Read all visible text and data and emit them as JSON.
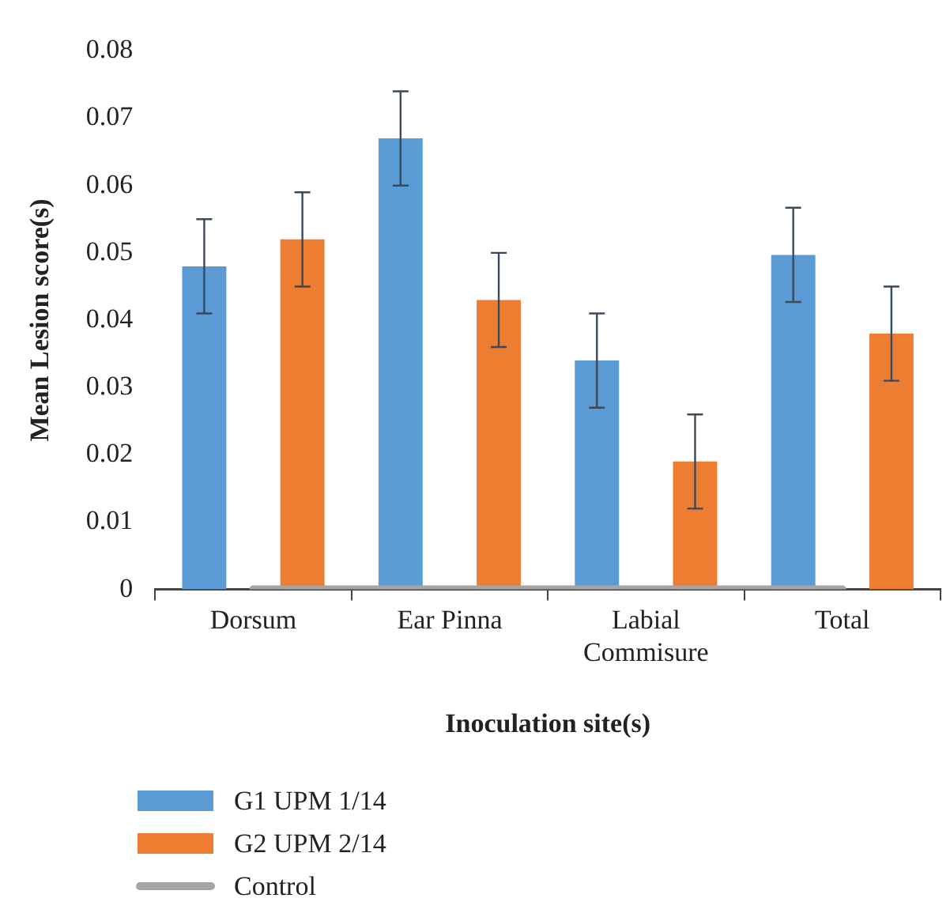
{
  "chart_data": {
    "type": "bar",
    "xlabel": "Inoculation site(s)",
    "ylabel": "Mean Lesion score(s)",
    "categories": [
      "Dorsum",
      "Ear Pinna",
      "Labial\nCommisure",
      "Total"
    ],
    "series": [
      {
        "name": "G1 UPM 1/14",
        "color": "#5b9bd5",
        "values": [
          0.048,
          0.067,
          0.034,
          0.0497
        ],
        "errors": [
          0.007,
          0.007,
          0.007,
          0.007
        ]
      },
      {
        "name": "G2 UPM 2/14",
        "color": "#ed7d31",
        "values": [
          0.052,
          0.043,
          0.019,
          0.038
        ],
        "errors": [
          0.007,
          0.007,
          0.007,
          0.007
        ]
      },
      {
        "name": "Control",
        "type": "line",
        "color": "#a5a5a5",
        "values": [
          0,
          0,
          0,
          0
        ]
      }
    ],
    "ylim": [
      0,
      0.08
    ],
    "yticks": [
      0,
      0.01,
      0.02,
      0.03,
      0.04,
      0.05,
      0.06,
      0.07,
      0.08
    ],
    "grid": false,
    "legend": "bottom left",
    "marker": "none"
  }
}
